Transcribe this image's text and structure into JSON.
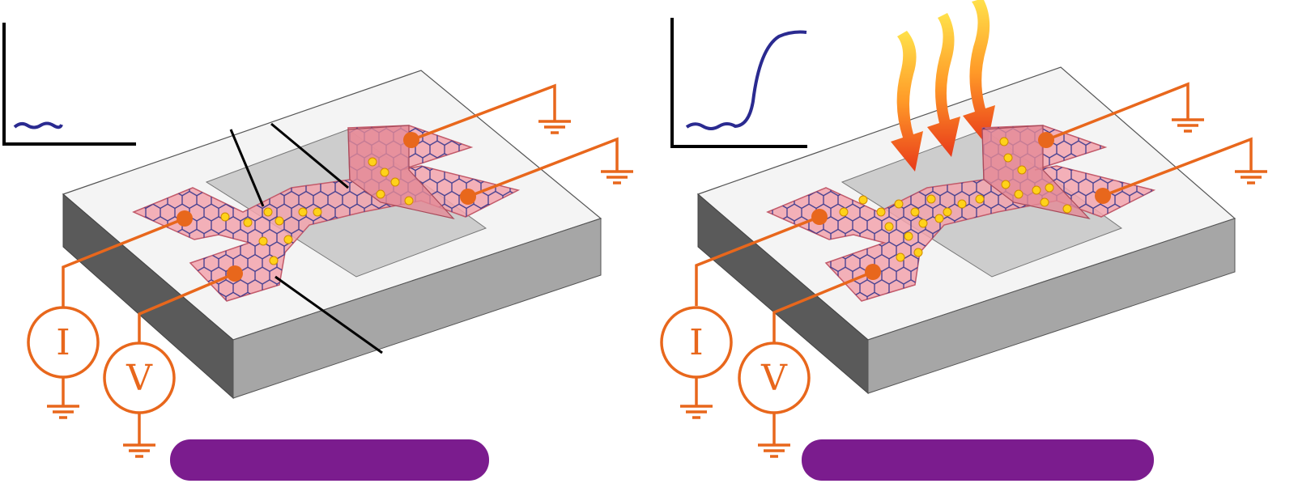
{
  "colors": {
    "wire": "#e8671c",
    "slab_top": "#f4f4f4",
    "slab_front": "#a6a6a6",
    "slab_side": "#5a5a5a",
    "trench": "#cdcdcd",
    "sheet_fill": "#f2a3ad",
    "lattice": "#2a2f8a",
    "dot": "#ffd21a",
    "plot_trace": "#2a2a90",
    "label_bar": "#7b1c8e",
    "heat_top": "#ffe14a",
    "heat_bottom": "#e83a1a"
  },
  "panels": [
    {
      "id": "left",
      "meters": {
        "current": "I",
        "voltage": "V"
      },
      "icon_names": [
        "current-meter-icon",
        "voltmeter-icon",
        "ground-icon"
      ],
      "response": "flat",
      "heat_arrows": false
    },
    {
      "id": "right",
      "meters": {
        "current": "I",
        "voltage": "V"
      },
      "icon_names": [
        "current-meter-icon",
        "voltmeter-icon",
        "ground-icon",
        "heat-arrow-icon"
      ],
      "response": "sigmoid-rise",
      "heat_arrows": true
    }
  ]
}
